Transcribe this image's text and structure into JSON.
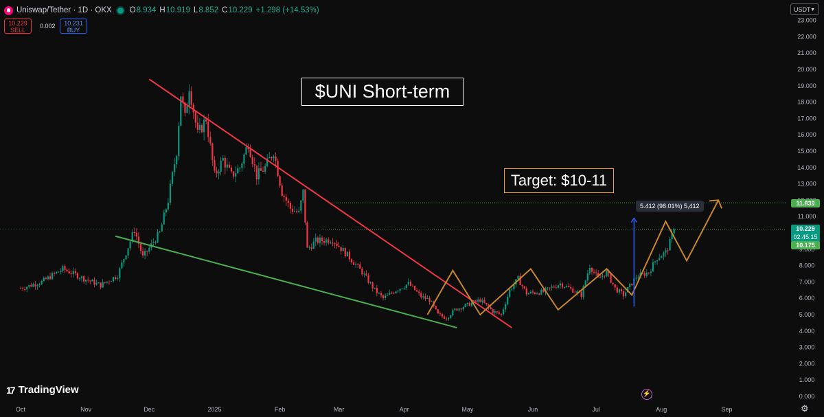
{
  "header": {
    "symbol_title": "Uniswap/Tether · 1D · OKX",
    "ohlc": {
      "o_label": "O",
      "o_value": "8.934",
      "h_label": "H",
      "h_value": "10.919",
      "l_label": "L",
      "l_value": "8.852",
      "c_label": "C",
      "c_value": "10.229",
      "change": "+1.298 (+14.53%)"
    },
    "sell_price": "10.229",
    "sell_label": "SELL",
    "spread": "0.002",
    "buy_price": "10.231",
    "buy_label": "BUY",
    "currency": "USDT"
  },
  "annotations": {
    "title_text": "$UNI Short-term",
    "target_text": "Target: $10-11",
    "measure_text": "5.412 (98.01%) 5,412"
  },
  "price_tags": {
    "target_level": "11.839",
    "current_price": "10.229",
    "countdown": "02:45:15",
    "lower_level": "10.175"
  },
  "branding": {
    "logo_text": "TradingView"
  },
  "colors": {
    "background": "#0d0d0d",
    "up_candle": "#089981",
    "down_candle": "#f23645",
    "resistance_line": "#f23645",
    "support_line": "#4caf50",
    "projection": "#c7862a",
    "measure_arrow": "#2962ff",
    "level_line": "#4caf50"
  },
  "icons": [
    "uniswap-icon",
    "live-dot-icon",
    "chevron-down-icon",
    "tradingview-logo-icon",
    "lightning-icon",
    "gear-icon"
  ],
  "chart_data": {
    "type": "candlestick",
    "title": "",
    "xlabel": "",
    "ylabel": "",
    "ylim": [
      0,
      23
    ],
    "grid": false,
    "x_ticks": [
      "Oct",
      "Nov",
      "Dec",
      "2025",
      "Feb",
      "Mar",
      "Apr",
      "May",
      "Jun",
      "Jul",
      "Aug",
      "Sep"
    ],
    "y_ticks": [
      "0.000",
      "1.000",
      "2.000",
      "3.000",
      "4.000",
      "5.000",
      "6.000",
      "7.000",
      "8.000",
      "9.000",
      "10.000",
      "11.000",
      "12.000",
      "13.000",
      "14.000",
      "15.000",
      "16.000",
      "17.000",
      "18.000",
      "19.000",
      "20.000",
      "21.000",
      "22.000",
      "23.000"
    ],
    "price_path": {
      "date_unit": "days from Oct 1",
      "keypoints": [
        [
          0,
          6.6
        ],
        [
          10,
          7.0
        ],
        [
          20,
          7.8
        ],
        [
          30,
          7.2
        ],
        [
          38,
          6.8
        ],
        [
          46,
          7.4
        ],
        [
          54,
          10.2
        ],
        [
          58,
          8.5
        ],
        [
          66,
          10.0
        ],
        [
          70,
          12.0
        ],
        [
          74,
          15.0
        ],
        [
          76,
          18.5
        ],
        [
          78,
          17.0
        ],
        [
          80,
          19.0
        ],
        [
          84,
          16.0
        ],
        [
          88,
          17.0
        ],
        [
          92,
          13.5
        ],
        [
          96,
          14.5
        ],
        [
          100,
          13.5
        ],
        [
          104,
          14.0
        ],
        [
          108,
          15.5
        ],
        [
          112,
          13.5
        ],
        [
          116,
          14.0
        ],
        [
          120,
          15.0
        ],
        [
          124,
          12.5
        ],
        [
          128,
          11.5
        ],
        [
          132,
          11.2
        ],
        [
          134,
          12.5
        ],
        [
          136,
          9.0
        ],
        [
          140,
          9.5
        ],
        [
          148,
          9.6
        ],
        [
          156,
          8.5
        ],
        [
          162,
          7.6
        ],
        [
          168,
          6.5
        ],
        [
          172,
          6.0
        ],
        [
          178,
          6.5
        ],
        [
          184,
          6.9
        ],
        [
          190,
          6.1
        ],
        [
          194,
          5.9
        ],
        [
          198,
          5.0
        ],
        [
          202,
          4.8
        ],
        [
          206,
          5.3
        ],
        [
          212,
          5.6
        ],
        [
          218,
          5.9
        ],
        [
          224,
          5.2
        ],
        [
          228,
          5.0
        ],
        [
          232,
          6.5
        ],
        [
          236,
          7.2
        ],
        [
          240,
          6.3
        ],
        [
          248,
          6.4
        ],
        [
          256,
          6.9
        ],
        [
          262,
          6.5
        ],
        [
          266,
          6.2
        ],
        [
          270,
          8.0
        ],
        [
          274,
          7.2
        ],
        [
          278,
          7.6
        ],
        [
          282,
          6.6
        ],
        [
          286,
          6.2
        ],
        [
          292,
          7.3
        ],
        [
          298,
          7.6
        ],
        [
          302,
          8.5
        ],
        [
          306,
          8.8
        ],
        [
          308,
          9.4
        ],
        [
          310,
          10.2
        ]
      ]
    },
    "lines": {
      "resistance": {
        "from": [
          "2024-12-01",
          19.4
        ],
        "to": [
          "2025-05-22",
          4.2
        ]
      },
      "support": {
        "from": [
          "2024-11-15",
          9.8
        ],
        "to": [
          "2025-04-26",
          4.2
        ]
      },
      "target_level": 11.839,
      "current_level": 10.229
    },
    "projection_path": [
      [
        "2025-04-12",
        5.0
      ],
      [
        "2025-04-24",
        7.7
      ],
      [
        "2025-05-07",
        5.0
      ],
      [
        "2025-05-31",
        7.8
      ],
      [
        "2025-06-13",
        5.3
      ],
      [
        "2025-07-06",
        7.8
      ],
      [
        "2025-07-18",
        6.2
      ],
      [
        "2025-08-03",
        10.7
      ],
      [
        "2025-08-13",
        8.3
      ],
      [
        "2025-08-28",
        12.0
      ]
    ],
    "measure": {
      "date": "2025-07-19",
      "from": 5.5,
      "to": 10.9,
      "label": "5.412 (98.01%) 5,412"
    }
  }
}
